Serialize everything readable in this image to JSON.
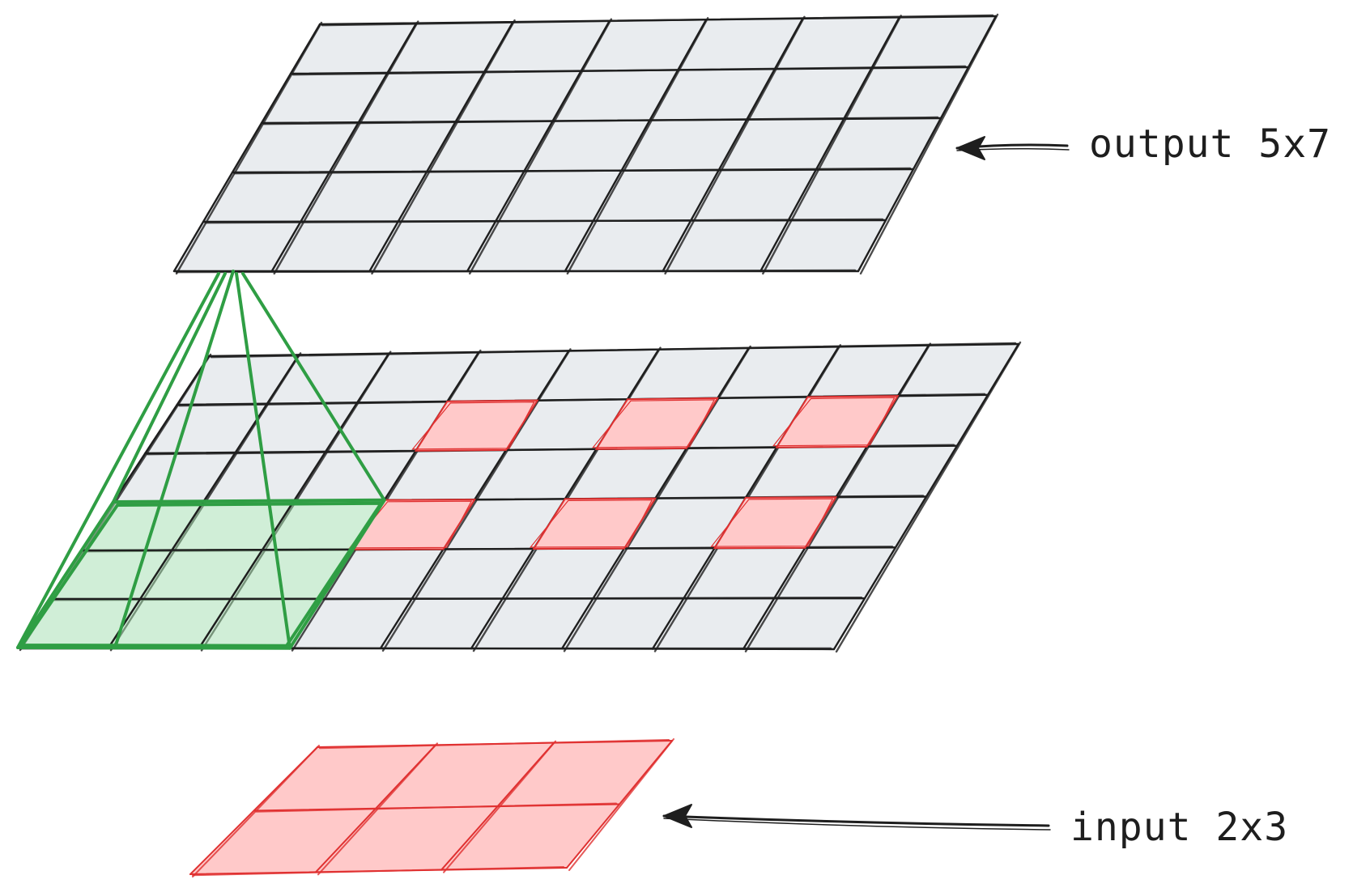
{
  "layers": {
    "output": {
      "label": "output 5x7",
      "rows": 5,
      "cols": 7
    },
    "middle": {
      "rows": 6,
      "cols": 9
    },
    "input": {
      "label": "input 2x3",
      "rows": 2,
      "cols": 3
    }
  },
  "red_cells": [
    {
      "row": 1,
      "col": 3
    },
    {
      "row": 1,
      "col": 5
    },
    {
      "row": 1,
      "col": 7
    },
    {
      "row": 3,
      "col": 3
    },
    {
      "row": 3,
      "col": 5
    },
    {
      "row": 3,
      "col": 7
    }
  ],
  "kernel": {
    "rows": 3,
    "cols": 3
  },
  "colors": {
    "layer_fill": "#e9ecef",
    "line": "#1e1e1e",
    "red_fill": "#ffc9c9",
    "red_line": "#e03131",
    "green_fill": "#b2f2bb",
    "green_line": "#2f9e44"
  }
}
